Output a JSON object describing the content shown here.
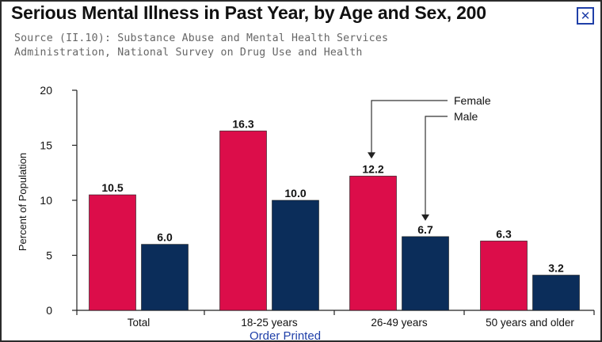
{
  "window": {
    "title": "Serious Mental Illness in Past Year, by Age and Sex, 200",
    "close_icon": "close-icon",
    "accent": "#1f3fa8"
  },
  "source": {
    "line1": "Source (II.10): Substance Abuse and Mental Health Services",
    "line2": "Administration, National Survey on Drug Use and Health"
  },
  "chart_data": {
    "type": "bar",
    "categories": [
      "Total",
      "18-25 years",
      "26-49 years",
      "50 years and older"
    ],
    "series": [
      {
        "name": "Female",
        "values": [
          10.5,
          16.3,
          12.2,
          6.3
        ],
        "labels": [
          "10.5",
          "16.3",
          "12.2",
          "6.3"
        ],
        "color": "#dc0d4a"
      },
      {
        "name": "Male",
        "values": [
          6.0,
          10.0,
          6.7,
          3.2
        ],
        "labels": [
          "6.0",
          "10.0",
          "6.7",
          "3.2"
        ],
        "color": "#0b2d5a"
      }
    ],
    "ylabel": "Percent of Population",
    "xlabel": "",
    "ylim": [
      0,
      20
    ],
    "yticks": [
      0,
      5,
      10,
      15,
      20
    ],
    "ytick_labels": [
      "0",
      "5",
      "10",
      "15",
      "20"
    ],
    "grid": false,
    "legend": "callout arrows top-right"
  },
  "footer": {
    "link_text": "Order Printed"
  }
}
